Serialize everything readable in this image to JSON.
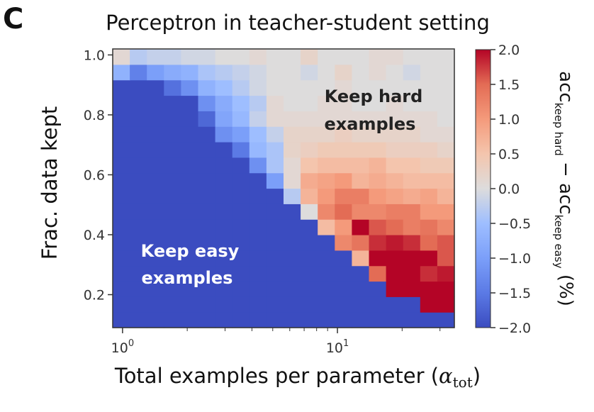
{
  "panel_letter": "C",
  "chart_data": {
    "type": "heatmap",
    "title": "Perceptron in teacher-student setting",
    "xlabel": "Total examples per parameter (",
    "xlabel_symbol": "α",
    "xlabel_subscript": "tot",
    "xlabel_close": ")",
    "ylabel": "Frac. data kept",
    "x_scale": "log",
    "xlim": [
      0.9,
      35
    ],
    "ylim": [
      0.09,
      1.02
    ],
    "x_tick_labels": [
      {
        "value": 1,
        "base": "10",
        "exp": "0"
      },
      {
        "value": 10,
        "base": "10",
        "exp": "1"
      }
    ],
    "y_ticks": [
      0.2,
      0.4,
      0.6,
      0.8,
      1.0
    ],
    "y_tick_labels": [
      "0.2",
      "0.4",
      "0.6",
      "0.8",
      "1.0"
    ],
    "colorbar": {
      "cmap": "coolwarm",
      "vmin": -2.0,
      "vmax": 2.0,
      "ticks": [
        "2.0",
        "1.5",
        "1.0",
        "0.5",
        "0.0",
        "−0.5",
        "−1.0",
        "−1.5",
        "−2.0"
      ],
      "label_parts": [
        "acc",
        "keep hard",
        " − acc",
        "keep easy",
        " (%)"
      ]
    },
    "annotations": [
      {
        "lines": [
          "Keep hard",
          "examples"
        ],
        "color": "#222222"
      },
      {
        "lines": [
          "Keep easy",
          "examples"
        ],
        "color": "#ffffff"
      }
    ],
    "grid": false,
    "n_x": 20,
    "n_y": 18,
    "values": [
      [
        -2,
        -2,
        -2,
        -2,
        -2,
        -2,
        -2,
        -2,
        -2,
        -2,
        -2,
        -2,
        -2,
        -2,
        -2,
        -2,
        -2,
        -2,
        -2,
        -2
      ],
      [
        -2,
        -2,
        -2,
        -2,
        -2,
        -2,
        -2,
        -2,
        -2,
        -2,
        -2,
        -2,
        -2,
        -2,
        -2,
        -2,
        -2,
        -2,
        2,
        2
      ],
      [
        -2,
        -2,
        -2,
        -2,
        -2,
        -2,
        -2,
        -2,
        -2,
        -2,
        -2,
        -2,
        -2,
        -2,
        -2,
        -2,
        2,
        2,
        2,
        2
      ],
      [
        -2,
        -2,
        -2,
        -2,
        -2,
        -2,
        -2,
        -2,
        -2,
        -2,
        -2,
        -2,
        -2,
        -2,
        -2,
        1.5,
        2,
        2,
        1.8,
        1.9
      ],
      [
        -2,
        -2,
        -2,
        -2,
        -2,
        -2,
        -2,
        -2,
        -2,
        -2,
        -2,
        -2,
        -2,
        -2,
        0.7,
        2,
        2,
        2,
        2,
        1.6
      ],
      [
        -2,
        -2,
        -2,
        -2,
        -2,
        -2,
        -2,
        -2,
        -2,
        -2,
        -2,
        -2,
        -2,
        1.2,
        1.4,
        1.8,
        1.9,
        1.8,
        1.5,
        1.6
      ],
      [
        -2,
        -2,
        -2,
        -2,
        -2,
        -2,
        -2,
        -2,
        -2,
        -2,
        -2,
        -2,
        0.6,
        1.0,
        2,
        1.6,
        1.5,
        1.3,
        1.4,
        1.2
      ],
      [
        -2,
        -2,
        -2,
        -2,
        -2,
        -2,
        -2,
        -2,
        -2,
        -2,
        -2,
        0.0,
        1.2,
        1.5,
        1.2,
        1.2,
        1.3,
        1.3,
        1.0,
        1.0
      ],
      [
        -2,
        -2,
        -2,
        -2,
        -2,
        -2,
        -2,
        -2,
        -2,
        -2,
        -0.3,
        0.7,
        1.0,
        1.3,
        1.3,
        1.0,
        0.9,
        0.8,
        0.9,
        0.7
      ],
      [
        -2,
        -2,
        -2,
        -2,
        -2,
        -2,
        -2,
        -2,
        -2,
        -1.0,
        0.1,
        0.8,
        0.9,
        1.0,
        0.7,
        0.8,
        0.7,
        0.6,
        0.6,
        0.6
      ],
      [
        -2,
        -2,
        -2,
        -2,
        -2,
        -2,
        -2,
        -2,
        -1.2,
        -0.4,
        0.1,
        0.5,
        0.6,
        0.6,
        0.6,
        0.7,
        0.5,
        0.5,
        0.4,
        0.4
      ],
      [
        -2,
        -2,
        -2,
        -2,
        -2,
        -2,
        -2,
        -1.5,
        -0.6,
        -0.4,
        0.2,
        0.3,
        0.4,
        0.4,
        0.4,
        0.4,
        0.3,
        0.3,
        0.3,
        0.2
      ],
      [
        -2,
        -2,
        -2,
        -2,
        -2,
        -2,
        -1.2,
        -1.0,
        -0.5,
        -0.2,
        0.2,
        0.2,
        0.2,
        0.3,
        0.2,
        0.2,
        0.2,
        0.2,
        0.1,
        0.1
      ],
      [
        -2,
        -2,
        -2,
        -2,
        -2,
        -1.7,
        -0.9,
        -0.6,
        -0.2,
        0.1,
        0.1,
        0.1,
        0.1,
        0.1,
        0.1,
        0.1,
        0.1,
        0.1,
        0.1,
        0.0
      ],
      [
        -2,
        -2,
        -2,
        -2,
        -2,
        -1.2,
        -0.8,
        -0.5,
        -0.3,
        0.1,
        0.0,
        0.0,
        0.1,
        0.1,
        0.0,
        0.0,
        0.1,
        0.0,
        0.0,
        0.0
      ],
      [
        -2,
        -2,
        -2,
        -1.6,
        -1.2,
        -0.7,
        -0.5,
        -0.3,
        -0.1,
        0.0,
        0.0,
        0.0,
        0.0,
        0.1,
        0.0,
        0.0,
        0.0,
        0.0,
        0.0,
        0.0
      ],
      [
        -0.7,
        -1.4,
        -1.0,
        -0.8,
        -0.7,
        -0.4,
        -0.3,
        -0.2,
        -0.1,
        0.0,
        0.0,
        -0.1,
        0.0,
        0.2,
        0.0,
        0.1,
        0.0,
        -0.1,
        0.0,
        0.0
      ],
      [
        0.1,
        -0.3,
        -0.2,
        -0.2,
        -0.1,
        -0.1,
        0.0,
        0.0,
        0.1,
        0.0,
        0.0,
        0.2,
        0.0,
        0.0,
        0.0,
        0.1,
        0.1,
        0.0,
        0.0,
        0.0
      ]
    ]
  }
}
